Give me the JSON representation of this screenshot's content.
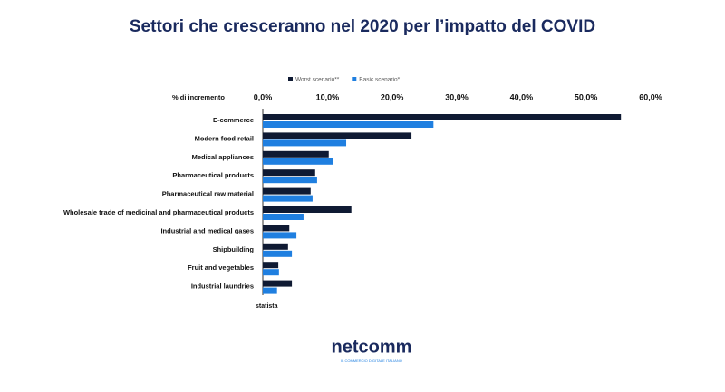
{
  "chart_data": {
    "type": "bar",
    "orientation": "horizontal",
    "title": "Settori che cresceranno nel 2020 per l’impatto del COVID",
    "x_label": "% di incremento",
    "categories": [
      "E-commerce",
      "Modern food retail",
      "Medical appliances",
      "Pharmaceutical products",
      "Pharmaceutical raw material",
      "Wholesale trade of medicinal and pharmaceutical products",
      "Industrial and medical gases",
      "Shipbuilding",
      "Fruit and vegetables",
      "Industrial laundries"
    ],
    "series": [
      {
        "name": "Worst scenario**",
        "color": "#0f1a33",
        "values": [
          55.4,
          23.0,
          10.2,
          8.1,
          7.4,
          13.7,
          4.1,
          3.9,
          2.4,
          4.5
        ]
      },
      {
        "name": "Basic scenario*",
        "color": "#1f7fe0",
        "values": [
          26.4,
          12.9,
          10.9,
          8.4,
          7.7,
          6.3,
          5.2,
          4.5,
          2.5,
          2.2
        ]
      }
    ],
    "xlim": [
      0,
      60
    ],
    "xticks": [
      {
        "value": 0,
        "label": "0,0%"
      },
      {
        "value": 10,
        "label": "10,0%"
      },
      {
        "value": 20,
        "label": "20,0%"
      },
      {
        "value": 30,
        "label": "30,0%"
      },
      {
        "value": 40,
        "label": "40,0%"
      },
      {
        "value": 50,
        "label": "50,0%"
      },
      {
        "value": 60,
        "label": "60,0%"
      }
    ],
    "legend": "top"
  },
  "footer": {
    "source": "statista",
    "logo": "netcomm",
    "tagline": "IL COMMERCIO DIGITALE ITALIANO"
  }
}
